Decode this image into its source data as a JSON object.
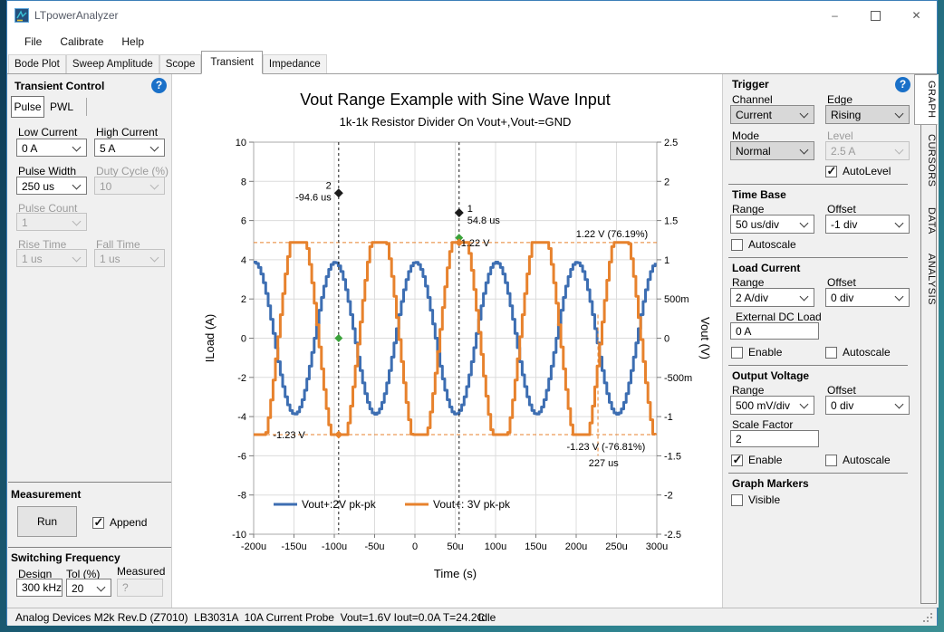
{
  "window": {
    "title": "LTpowerAnalyzer",
    "buttons": {
      "minimize": "–",
      "close": "✕"
    }
  },
  "colors": {
    "accent_help": "#1a70c8",
    "window_border": "#3c7fb8",
    "series_blue": "#3d6eb2",
    "series_orange": "#e7822d",
    "marker_green": "#3aa23a"
  },
  "menu": {
    "items": [
      "File",
      "Calibrate",
      "Help"
    ]
  },
  "tabs": {
    "items": [
      "Bode Plot",
      "Sweep Amplitude",
      "Scope",
      "Transient",
      "Impedance"
    ],
    "active": "Transient"
  },
  "side_tabs": {
    "items": [
      "GRAPH",
      "CURSORS",
      "DATA",
      "ANALYSIS"
    ],
    "active": "GRAPH"
  },
  "transient_control": {
    "title": "Transient Control",
    "help_icon": "?",
    "tabs": [
      "Pulse",
      "PWL"
    ],
    "active_tab": "Pulse",
    "fields": {
      "low_current": {
        "label": "Low Current",
        "value": "0 A",
        "enabled": true
      },
      "high_current": {
        "label": "High Current",
        "value": "5 A",
        "enabled": true
      },
      "pulse_width": {
        "label": "Pulse Width",
        "value": "250 us",
        "enabled": true
      },
      "duty_cycle": {
        "label": "Duty Cycle (%)",
        "value": "10",
        "enabled": false
      },
      "pulse_count": {
        "label": "Pulse Count",
        "value": "1",
        "enabled": false
      },
      "rise_time": {
        "label": "Rise Time",
        "value": "1 us",
        "enabled": false
      },
      "fall_time": {
        "label": "Fall Time",
        "value": "1 us",
        "enabled": false
      }
    }
  },
  "measurement": {
    "title": "Measurement",
    "run_label": "Run",
    "append_label": "Append",
    "append_checked": true
  },
  "switching_frequency": {
    "title": "Switching Frequency",
    "design_label": "Design",
    "design_value": "300 kHz",
    "tol_label": "Tol (%)",
    "tol_value": "20",
    "measured_label": "Measured",
    "measured_value": "?"
  },
  "trigger": {
    "title": "Trigger",
    "help_icon": "?",
    "channel_label": "Channel",
    "channel_value": "Current",
    "edge_label": "Edge",
    "edge_value": "Rising",
    "mode_label": "Mode",
    "mode_value": "Normal",
    "level_label": "Level",
    "level_value": "2.5 A",
    "autolevel_label": "AutoLevel",
    "autolevel_checked": true
  },
  "time_base": {
    "title": "Time Base",
    "range_label": "Range",
    "range_value": "50 us/div",
    "offset_label": "Offset",
    "offset_value": "-1 div",
    "autoscale_label": "Autoscale",
    "autoscale_checked": false
  },
  "load_current": {
    "title": "Load Current",
    "range_label": "Range",
    "range_value": "2 A/div",
    "offset_label": "Offset",
    "offset_value": "0 div",
    "external_dc_load_label": "External DC Load",
    "external_dc_load_value": "0 A",
    "enable_label": "Enable",
    "enable_checked": false,
    "autoscale_label": "Autoscale",
    "autoscale_checked": false
  },
  "output_voltage": {
    "title": "Output Voltage",
    "range_label": "Range",
    "range_value": "500 mV/div",
    "offset_label": "Offset",
    "offset_value": "0 div",
    "scale_factor_label": "Scale Factor",
    "scale_factor_value": "2",
    "enable_label": "Enable",
    "enable_checked": true,
    "autoscale_label": "Autoscale",
    "autoscale_checked": false
  },
  "graph_markers": {
    "title": "Graph Markers",
    "visible_label": "Visible",
    "visible_checked": false
  },
  "status_bar": {
    "device_info": "Analog Devices M2k Rev.D (Z7010)  LB3031A  10A Current Probe  Vout=1.6V Iout=0.0A T=24.2C",
    "state": "Idle"
  },
  "chart_data": {
    "type": "line",
    "title": "Vout Range Example with Sine Wave Input",
    "subtitle": "1k-1k Resistor Divider On Vout+,Vout-=GND",
    "xlabel": "Time (s)",
    "ylabel_left": "ILoad (A)",
    "ylabel_right": "Vout (V)",
    "grid": true,
    "legend_position": "bottom-inside",
    "xlim_us": [
      -200,
      300
    ],
    "x_tick_step_us": 50,
    "x_tick_labels": [
      "-200u",
      "-150u",
      "-100u",
      "-50u",
      "0",
      "50u",
      "100u",
      "150u",
      "200u",
      "250u",
      "300u"
    ],
    "ylim_left": [
      -10,
      10
    ],
    "y_tick_labels_left": [
      "10",
      "8",
      "6",
      "4",
      "2",
      "0",
      "-2",
      "-4",
      "-6",
      "-8",
      "-10"
    ],
    "ylim_right": [
      -2.5,
      2.5
    ],
    "y_tick_labels_right": [
      "2.5",
      "2",
      "1.5",
      "1",
      "500m",
      "0",
      "-500m",
      "-1",
      "-1.5",
      "-2",
      "-2.5"
    ],
    "series": [
      {
        "name": "Vout+:2V pk-pk",
        "color": "#3d6eb2",
        "waveform": "sine",
        "amplitude_V": 0.97,
        "period_us": 100,
        "peak_at_us": 0,
        "clip_low_V": null,
        "clip_high_V": null
      },
      {
        "name": "Vout+: 3V pk-pk",
        "color": "#e7822d",
        "waveform": "clipped-sine",
        "amplitude_V": 1.5,
        "period_us": 100,
        "peak_at_us": 54.8,
        "clip_low_V": -1.23,
        "clip_high_V": 1.22
      }
    ],
    "cursors": [
      {
        "id": "2",
        "time_label": "-94.6 us",
        "t_us": -94.6,
        "handle_level_left": 7.4,
        "label_side": "left"
      },
      {
        "id": "1",
        "time_label": "54.8 us",
        "t_us": 54.8,
        "handle_level_left": 6.4,
        "label_side": "right"
      }
    ],
    "markers": [
      {
        "color": "#3aa23a",
        "t_us": -94.6,
        "value_V": 0
      },
      {
        "color": "#3aa23a",
        "t_us": 54.8,
        "value_V": 1.28
      },
      {
        "color": "#e7822d",
        "t_us": -94.6,
        "value_V": -1.23
      },
      {
        "color": "#e7822d",
        "t_us": 54.8,
        "value_V": 1.22
      }
    ],
    "reference_lines": {
      "top": {
        "value_V": 1.22,
        "label_left": "1.22 V",
        "label_left_t_us": 57,
        "label_right": "1.22 V (76.19%)",
        "label_right_t_us": 289
      },
      "bottom": {
        "value_V": -1.23,
        "label_left": "-1.23 V",
        "label_left_t_us": -176,
        "label_right": "-1.23 V (-76.81%)",
        "label_right_t_us": 237
      },
      "vertical": {
        "t_us": 227,
        "label": "227 us",
        "label_t_us": 234
      }
    }
  }
}
